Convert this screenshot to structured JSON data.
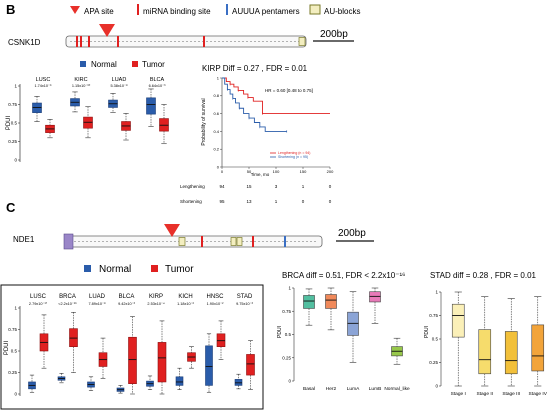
{
  "panel_labels": {
    "B": "B",
    "C": "C"
  },
  "legend_top": {
    "apa": "APA site",
    "mirna": "miRNA binding site",
    "auuua": "AUUUA pentamers",
    "au_blocks": "AU-blocks"
  },
  "genes": {
    "b": {
      "name": "CSNK1D",
      "scale": "200bp"
    },
    "c": {
      "name": "NDE1",
      "scale": "200bp"
    }
  },
  "groups": {
    "normal": "Normal",
    "tumor": "Tumor"
  },
  "colors": {
    "normal": "#2a5caa",
    "tumor": "#e02020",
    "apa": "#e8302a",
    "mirna": "#e02020",
    "auuua": "#3a6fc4",
    "au_block": "#f3eec0",
    "utr_fill": "#f8f8f8",
    "cds": "#9a86c8"
  },
  "box_b": {
    "ylabel": "PDUI",
    "cancers": [
      {
        "name": "LUSC",
        "p": "1.74x10⁻⁶"
      },
      {
        "name": "KIRC",
        "p": "1.15x10⁻¹⁰"
      },
      {
        "name": "LUAD",
        "p": "5.38x10⁻⁸"
      },
      {
        "name": "BLCA",
        "p": "6.64x10⁻³"
      }
    ]
  },
  "box_c": {
    "ylabel": "PDUI",
    "cancers": [
      {
        "name": "LUSC",
        "p": "2.79x10⁻¹⁷"
      },
      {
        "name": "BRCA",
        "p": "<2.2x10⁻¹⁶"
      },
      {
        "name": "LUAD",
        "p": "7.89x10⁻⁸"
      },
      {
        "name": "BLCA",
        "p": "9.42x10⁻³"
      },
      {
        "name": "KIRP",
        "p": "2.53x10⁻⁴"
      },
      {
        "name": "KICH",
        "p": "1.18x10⁻²"
      },
      {
        "name": "HNSC",
        "p": "1.90x10⁻²"
      },
      {
        "name": "STAD",
        "p": "9.75x10⁻³"
      }
    ]
  },
  "km": {
    "title": "KIRP  Diff = 0.27 , FDR = 0.01",
    "hr": "HR = 0.60 [0.48 to 0.75]",
    "ylabel": "Probability of survival",
    "xlabel": "Time, mo",
    "legend": [
      "Lengthening (n = 94)",
      "Shortening (n = 95)"
    ],
    "risk_label": "No. at risk",
    "risk_rows": [
      {
        "label": "Lengthening",
        "values": [
          "94",
          "15",
          "3",
          "1",
          "0"
        ]
      },
      {
        "label": "Shortening",
        "values": [
          "95",
          "13",
          "1",
          "0",
          "0"
        ]
      }
    ]
  },
  "brca": {
    "title": "BRCA  diff = 0.51, FDR < 2.2x10⁻¹⁶",
    "ylabel": "PDUI"
  },
  "stad": {
    "title": "STAD  diff = 0.28 , FDR = 0.01",
    "ylabel": "PDUI"
  },
  "chart_data": [
    {
      "type": "box",
      "panel": "B",
      "ylabel": "PDUI",
      "ylim": [
        0,
        1
      ],
      "yticks": [
        0,
        0.25,
        0.5,
        0.75,
        1
      ],
      "categories": [
        "LUSC",
        "KIRC",
        "LUAD",
        "BLCA"
      ],
      "series": [
        {
          "name": "Normal",
          "boxes": [
            {
              "min": 0.52,
              "q1": 0.64,
              "med": 0.71,
              "q3": 0.77,
              "max": 0.86
            },
            {
              "min": 0.65,
              "q1": 0.73,
              "med": 0.78,
              "q3": 0.83,
              "max": 0.92
            },
            {
              "min": 0.64,
              "q1": 0.71,
              "med": 0.76,
              "q3": 0.81,
              "max": 0.9
            },
            {
              "min": 0.45,
              "q1": 0.62,
              "med": 0.75,
              "q3": 0.84,
              "max": 0.96
            }
          ]
        },
        {
          "name": "Tumor",
          "boxes": [
            {
              "min": 0.3,
              "q1": 0.37,
              "med": 0.42,
              "q3": 0.47,
              "max": 0.55
            },
            {
              "min": 0.3,
              "q1": 0.43,
              "med": 0.51,
              "q3": 0.58,
              "max": 0.72
            },
            {
              "min": 0.27,
              "q1": 0.4,
              "med": 0.46,
              "q3": 0.52,
              "max": 0.63
            },
            {
              "min": 0.22,
              "q1": 0.39,
              "med": 0.47,
              "q3": 0.56,
              "max": 0.75
            }
          ]
        }
      ]
    },
    {
      "type": "line",
      "panel": "B",
      "subtype": "kaplan-meier",
      "title": "KIRP",
      "xlabel": "Time, mo",
      "ylabel": "Probability of survival",
      "xlim": [
        0,
        200
      ],
      "ylim": [
        0,
        1
      ],
      "xticks": [
        0,
        50,
        100,
        150,
        200
      ],
      "yticks": [
        0,
        0.2,
        0.4,
        0.6,
        0.8,
        1
      ],
      "series": [
        {
          "name": "Lengthening",
          "x": [
            0,
            8,
            15,
            22,
            30,
            40,
            48,
            58,
            75,
            200
          ],
          "y": [
            1,
            0.96,
            0.93,
            0.9,
            0.86,
            0.82,
            0.78,
            0.74,
            0.6,
            0.6
          ]
        },
        {
          "name": "Shortening",
          "x": [
            0,
            5,
            10,
            15,
            20,
            25,
            32,
            40,
            50,
            60,
            70,
            80,
            120
          ],
          "y": [
            1,
            0.93,
            0.87,
            0.82,
            0.77,
            0.72,
            0.66,
            0.6,
            0.55,
            0.5,
            0.45,
            0.4,
            0.4
          ]
        }
      ],
      "annotations": [
        "Diff = 0.27 , FDR = 0.01",
        "HR = 0.60 [0.48 to 0.75]"
      ]
    },
    {
      "type": "box",
      "panel": "C",
      "ylabel": "PDUI",
      "ylim": [
        0,
        1
      ],
      "yticks": [
        0,
        0.25,
        0.5,
        0.75,
        1
      ],
      "categories": [
        "LUSC",
        "BRCA",
        "LUAD",
        "BLCA",
        "KIRP",
        "KICH",
        "HNSC",
        "STAD"
      ],
      "series": [
        {
          "name": "Normal",
          "boxes": [
            {
              "min": 0.02,
              "q1": 0.06,
              "med": 0.1,
              "q3": 0.14,
              "max": 0.22
            },
            {
              "min": 0.13,
              "q1": 0.16,
              "med": 0.18,
              "q3": 0.2,
              "max": 0.24
            },
            {
              "min": 0.04,
              "q1": 0.08,
              "med": 0.11,
              "q3": 0.14,
              "max": 0.2
            },
            {
              "min": 0.01,
              "q1": 0.03,
              "med": 0.05,
              "q3": 0.07,
              "max": 0.1
            },
            {
              "min": 0.05,
              "q1": 0.09,
              "med": 0.12,
              "q3": 0.15,
              "max": 0.21
            },
            {
              "min": 0.05,
              "q1": 0.1,
              "med": 0.14,
              "q3": 0.2,
              "max": 0.3
            },
            {
              "min": 0.02,
              "q1": 0.1,
              "med": 0.32,
              "q3": 0.56,
              "max": 0.7
            },
            {
              "min": 0.06,
              "q1": 0.1,
              "med": 0.13,
              "q3": 0.17,
              "max": 0.23
            }
          ]
        },
        {
          "name": "Tumor",
          "boxes": [
            {
              "min": 0.3,
              "q1": 0.5,
              "med": 0.6,
              "q3": 0.7,
              "max": 0.92
            },
            {
              "min": 0.25,
              "q1": 0.55,
              "med": 0.65,
              "q3": 0.76,
              "max": 0.95
            },
            {
              "min": 0.18,
              "q1": 0.32,
              "med": 0.4,
              "q3": 0.48,
              "max": 0.65
            },
            {
              "min": 0.0,
              "q1": 0.12,
              "med": 0.4,
              "q3": 0.66,
              "max": 0.9
            },
            {
              "min": 0.0,
              "q1": 0.14,
              "med": 0.42,
              "q3": 0.6,
              "max": 0.85
            },
            {
              "min": 0.3,
              "q1": 0.38,
              "med": 0.43,
              "q3": 0.48,
              "max": 0.55
            },
            {
              "min": 0.4,
              "q1": 0.55,
              "med": 0.62,
              "q3": 0.7,
              "max": 0.85
            },
            {
              "min": 0.05,
              "q1": 0.22,
              "med": 0.35,
              "q3": 0.46,
              "max": 0.62
            }
          ]
        }
      ]
    },
    {
      "type": "box",
      "panel": "C",
      "title": "BRCA  diff = 0.51, FDR < 2.2x10⁻¹⁶",
      "ylabel": "PDUI",
      "ylim": [
        0,
        1
      ],
      "yticks": [
        0,
        0.25,
        0.5,
        0.75,
        1
      ],
      "categories": [
        "Basal",
        "Her2",
        "LumA",
        "LumB",
        "Normal_like"
      ],
      "colors": [
        "#52bfa0",
        "#f0895a",
        "#8ba4d6",
        "#e87ab8",
        "#97c84a"
      ],
      "boxes": [
        {
          "min": 0.6,
          "q1": 0.78,
          "med": 0.86,
          "q3": 0.92,
          "max": 0.99
        },
        {
          "min": 0.55,
          "q1": 0.78,
          "med": 0.87,
          "q3": 0.93,
          "max": 1.0
        },
        {
          "min": 0.2,
          "q1": 0.49,
          "med": 0.62,
          "q3": 0.74,
          "max": 0.96
        },
        {
          "min": 0.62,
          "q1": 0.85,
          "med": 0.91,
          "q3": 0.96,
          "max": 1.0
        },
        {
          "min": 0.18,
          "q1": 0.27,
          "med": 0.32,
          "q3": 0.37,
          "max": 0.46
        }
      ]
    },
    {
      "type": "box",
      "panel": "C",
      "title": "STAD  diff = 0.28 , FDR = 0.01",
      "ylabel": "PDUI",
      "ylim": [
        0,
        1
      ],
      "yticks": [
        0,
        0.25,
        0.5,
        0.75,
        1
      ],
      "categories": [
        "Stage I",
        "Stage II",
        "Stage III",
        "Stage IV"
      ],
      "colors": [
        "#fbf0b8",
        "#f6dc6c",
        "#f2c03a",
        "#f2a43a"
      ],
      "boxes": [
        {
          "min": 0.0,
          "q1": 0.52,
          "med": 0.75,
          "q3": 0.87,
          "max": 1.0
        },
        {
          "min": 0.0,
          "q1": 0.13,
          "med": 0.28,
          "q3": 0.6,
          "max": 0.95
        },
        {
          "min": 0.0,
          "q1": 0.13,
          "med": 0.27,
          "q3": 0.58,
          "max": 0.93
        },
        {
          "min": 0.0,
          "q1": 0.16,
          "med": 0.32,
          "q3": 0.65,
          "max": 0.95
        }
      ]
    }
  ]
}
